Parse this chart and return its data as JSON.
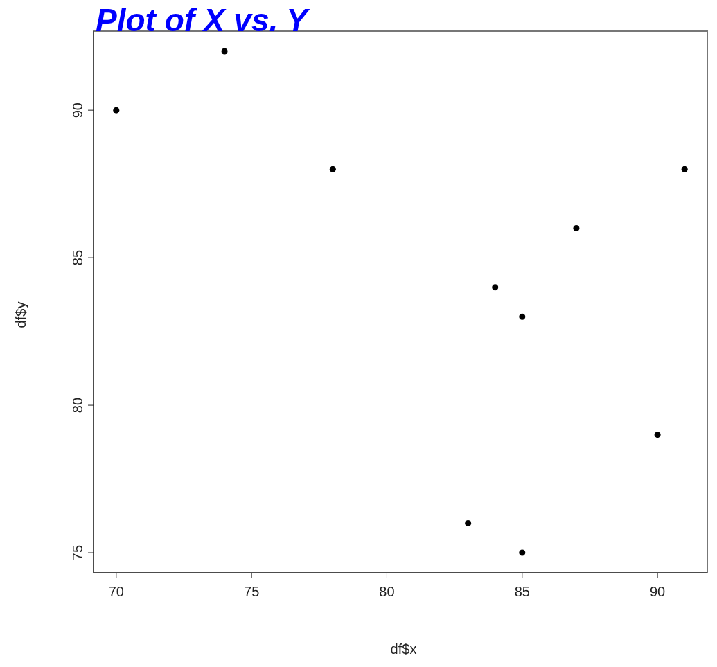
{
  "chart_data": {
    "type": "scatter",
    "title": "Plot of X vs. Y",
    "xlabel": "df$x",
    "ylabel": "df$y",
    "x": [
      70,
      74,
      78,
      83,
      84,
      85,
      85,
      87,
      90,
      91
    ],
    "series": [
      {
        "color": "#000000",
        "values": [
          90,
          92,
          88,
          76,
          84,
          83,
          75,
          86,
          79,
          88
        ]
      }
    ],
    "xlim": [
      69.16,
      91.84
    ],
    "xticks": [
      70,
      75,
      80,
      85,
      90
    ],
    "ylim": [
      74.32,
      92.68
    ],
    "yticks": [
      75,
      80,
      85,
      90
    ],
    "grid": false,
    "legend": false,
    "marker": "circle"
  }
}
